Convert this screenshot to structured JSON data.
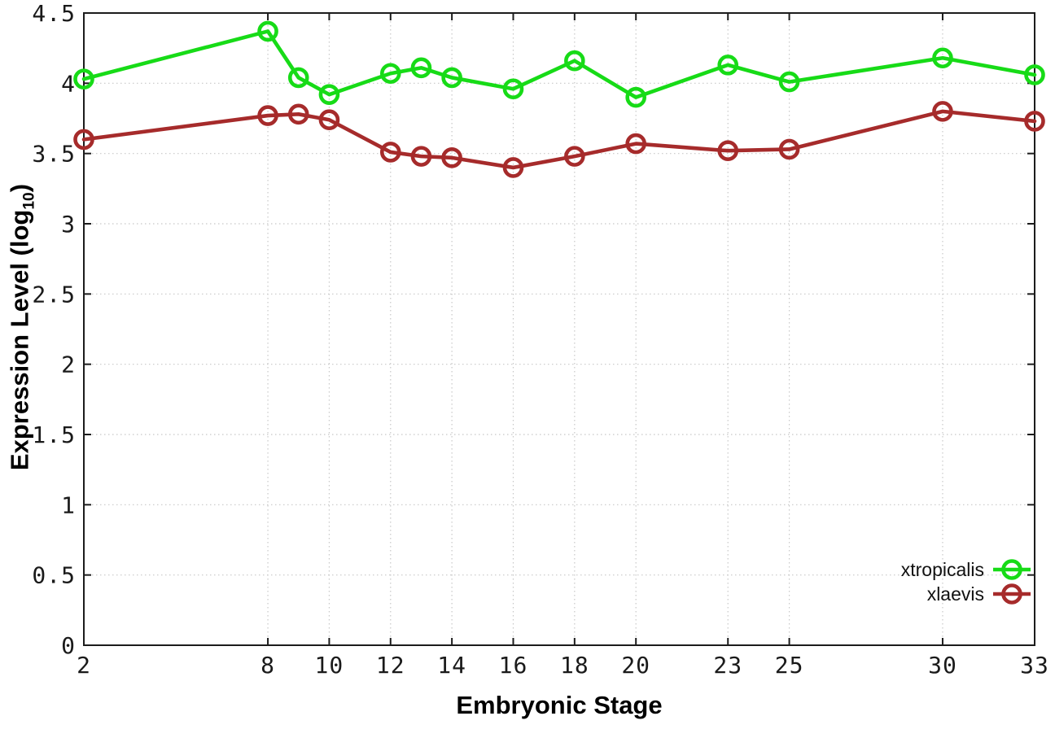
{
  "chart_data": {
    "type": "line",
    "title": "",
    "xlabel": "Embryonic Stage",
    "ylabel": "Expression Level (log10)",
    "ylabel_parts": {
      "prefix": "Expression Level (log",
      "sub": "10",
      "suffix": ")"
    },
    "x": [
      2,
      8,
      9,
      10,
      12,
      13,
      14,
      16,
      18,
      20,
      23,
      25,
      30,
      33
    ],
    "series": [
      {
        "name": "xtropicalis",
        "color": "#17db17",
        "values": [
          4.03,
          4.37,
          4.04,
          3.92,
          4.07,
          4.11,
          4.04,
          3.96,
          4.16,
          3.9,
          4.13,
          4.01,
          4.18,
          4.06
        ]
      },
      {
        "name": "xlaevis",
        "color": "#a62b2b",
        "values": [
          3.6,
          3.77,
          3.78,
          3.74,
          3.51,
          3.48,
          3.47,
          3.4,
          3.48,
          3.57,
          3.52,
          3.53,
          3.8,
          3.73
        ]
      }
    ],
    "xlim": [
      2,
      33
    ],
    "ylim": [
      0,
      4.5
    ],
    "xticks": [
      2,
      8,
      10,
      12,
      14,
      16,
      18,
      20,
      23,
      25,
      30,
      33
    ],
    "yticks": [
      0,
      0.5,
      1,
      1.5,
      2,
      2.5,
      3,
      3.5,
      4,
      4.5
    ],
    "grid": true,
    "marker": "open-circle",
    "legend_position": "inside-bottom-right",
    "colors": {
      "axis": "#1c1c1c",
      "grid": "#c8c8c8",
      "tick_label": "#1a1a1a",
      "background": "#ffffff"
    }
  }
}
